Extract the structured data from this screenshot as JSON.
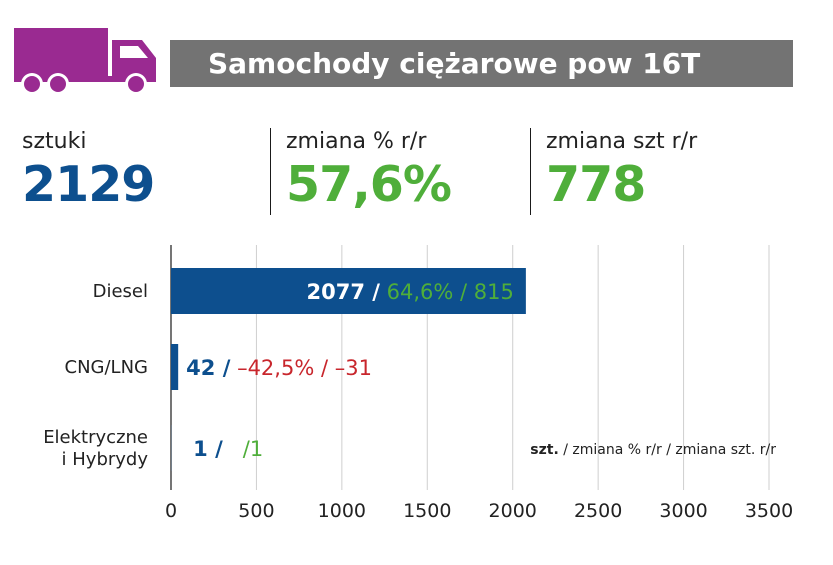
{
  "header": {
    "title": "Samochody ciężarowe pow 16T",
    "icon": "truck-icon"
  },
  "kpis": [
    {
      "label": "sztuki",
      "value": "2129",
      "color": "#0d4f8e"
    },
    {
      "label": "zmiana % r/r",
      "value": "57,6%",
      "color": "#4fae3a"
    },
    {
      "label": "zmiana szt r/r",
      "value": "778",
      "color": "#4fae3a"
    }
  ],
  "colors": {
    "bar": "#0d4f8e",
    "positive": "#4fae3a",
    "negative": "#c8262c",
    "header_bg": "#737373",
    "truck": "#9a2a91"
  },
  "legend": {
    "bold": "szt.",
    "rest": " / zmiana % r/r / zmiana szt. r/r"
  },
  "chart_data": {
    "type": "bar",
    "orientation": "horizontal",
    "categories": [
      "Diesel",
      "CNG/LNG",
      "Elektryczne i Hybrydy"
    ],
    "category_lines": [
      [
        "Diesel"
      ],
      [
        "CNG/LNG"
      ],
      [
        "Elektryczne",
        "i Hybrydy"
      ]
    ],
    "values": [
      2077,
      42,
      1
    ],
    "pct_change": [
      "64,6%",
      "–42,5%",
      ""
    ],
    "unit_change": [
      "815",
      "–31",
      "1"
    ],
    "label_parts": [
      {
        "num": "2077 /",
        "rest": " 64,6% / 815",
        "rest_color": "#4fae3a",
        "inside": true
      },
      {
        "num": "42 /",
        "rest": " –42,5% / –31",
        "rest_color": "#c8262c",
        "inside": false
      },
      {
        "num": "1 /",
        "rest": "   /1",
        "rest_color": "#4fae3a",
        "inside": false
      }
    ],
    "xlim": [
      0,
      3500
    ],
    "xticks": [
      0,
      500,
      1000,
      1500,
      2000,
      2500,
      3000,
      3500
    ],
    "grid": true,
    "legend_position": "bottom-right"
  }
}
